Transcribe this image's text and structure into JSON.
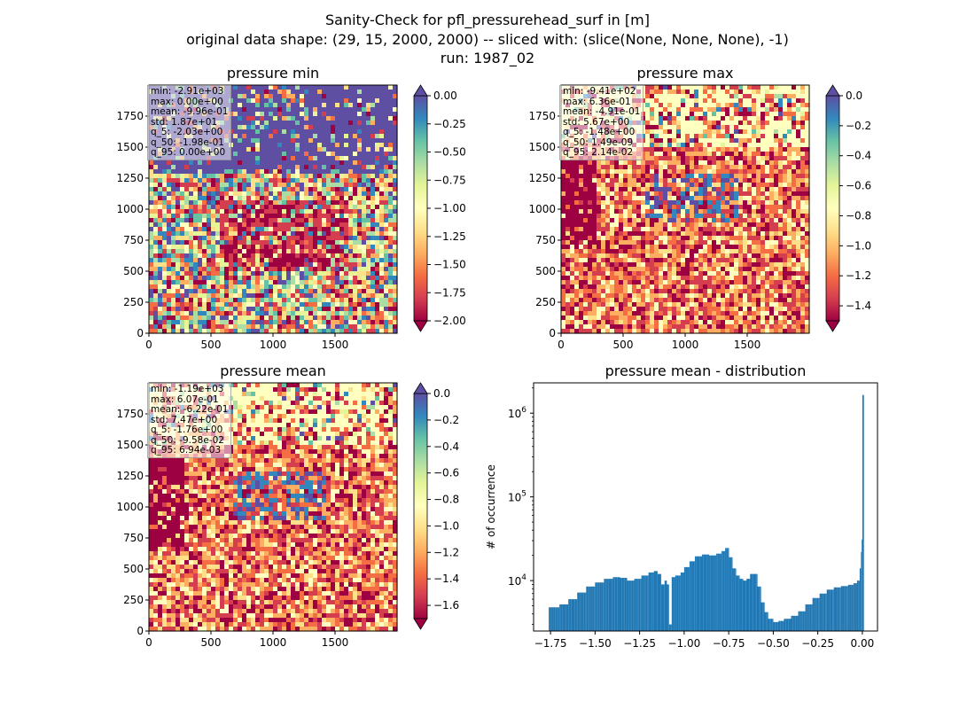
{
  "figure": {
    "title_line1": "Sanity-Check for pfl_pressurehead_surf in [m]",
    "title_line2": "original data shape: (29, 15, 2000, 2000) -- sliced with: (slice(None, None, None), -1)",
    "title_line3": "run: 1987_02"
  },
  "colors": {
    "spectral": [
      "#9e0142",
      "#d53e4f",
      "#f46d43",
      "#fdae61",
      "#fee08b",
      "#ffffbf",
      "#e6f598",
      "#abdda4",
      "#66c2a5",
      "#3288bd",
      "#5e4fa2"
    ],
    "histogram_bar": "#1f77b4"
  },
  "chart_data": [
    {
      "type": "heatmap",
      "title": "pressure min",
      "x_ticks": [
        "0",
        "500",
        "1000",
        "1500"
      ],
      "y_ticks": [
        "0",
        "250",
        "500",
        "750",
        "1000",
        "1250",
        "1500",
        "1750"
      ],
      "xlim": [
        0,
        2000
      ],
      "ylim": [
        0,
        2000
      ],
      "colorbar": {
        "min": -2.0,
        "max": 0.0,
        "extend": "both",
        "ticks": [
          "0.00",
          "−0.25",
          "−0.50",
          "−0.75",
          "−1.00",
          "−1.25",
          "−1.50",
          "−1.75",
          "−2.00"
        ]
      },
      "stats": [
        "min: -2.91e+03",
        "max: 0.00e+00",
        "mean: -9.96e-01",
        "std: 1.87e+01",
        "q_5: -2.03e+00",
        "q_50: -1.98e-01",
        "q_95: 0.00e+00"
      ]
    },
    {
      "type": "heatmap",
      "title": "pressure max",
      "x_ticks": [
        "0",
        "500",
        "1000",
        "1500"
      ],
      "y_ticks": [
        "0",
        "250",
        "500",
        "750",
        "1000",
        "1250",
        "1500",
        "1750"
      ],
      "xlim": [
        0,
        2000
      ],
      "ylim": [
        0,
        2000
      ],
      "colorbar": {
        "min": -1.5,
        "max": 0.0,
        "extend": "both",
        "ticks": [
          "0.0",
          "−0.2",
          "−0.4",
          "−0.6",
          "−0.8",
          "−1.0",
          "−1.2",
          "−1.4"
        ]
      },
      "stats": [
        "min: -9.41e+02",
        "max: 6.36e-01",
        "mean: -4.91e-01",
        "std: 5.67e+00",
        "q_5: -1.48e+00",
        "q_50: 1.49e-09",
        "q_95: 2.14e-02"
      ]
    },
    {
      "type": "heatmap",
      "title": "pressure mean",
      "x_ticks": [
        "0",
        "500",
        "1000",
        "1500"
      ],
      "y_ticks": [
        "0",
        "250",
        "500",
        "750",
        "1000",
        "1250",
        "1500",
        "1750"
      ],
      "xlim": [
        0,
        2000
      ],
      "ylim": [
        0,
        2000
      ],
      "colorbar": {
        "min": -1.7,
        "max": 0.0,
        "extend": "both",
        "ticks": [
          "0.0",
          "−0.2",
          "−0.4",
          "−0.6",
          "−0.8",
          "−1.0",
          "−1.2",
          "−1.4",
          "−1.6"
        ]
      },
      "stats": [
        "min: -1.19e+03",
        "max: 6.07e-01",
        "mean: -6.22e-01",
        "std: 7.47e+00",
        "q_5: -1.76e+00",
        "q_50: -9.58e-02",
        "q_95: 6.94e-03"
      ]
    },
    {
      "type": "bar",
      "title": "pressure mean - distribution",
      "ylabel": "# of occurrence",
      "y_scale": "log",
      "xlim": [
        -1.845,
        0.085
      ],
      "ylim": [
        2500,
        2300000
      ],
      "x_ticks": [
        "−1.75",
        "−1.50",
        "−1.25",
        "−1.00",
        "−0.75",
        "−0.50",
        "−0.25",
        "0.00"
      ],
      "y_ticks": [
        "10^4",
        "10^5",
        "10^6"
      ],
      "bin_width": 0.0088,
      "bins": [
        [
          -1.76,
          4800
        ],
        [
          -1.7,
          5200
        ],
        [
          -1.65,
          6000
        ],
        [
          -1.6,
          7200
        ],
        [
          -1.55,
          8500
        ],
        [
          -1.5,
          9500
        ],
        [
          -1.45,
          10500
        ],
        [
          -1.4,
          11000
        ],
        [
          -1.36,
          10800
        ],
        [
          -1.32,
          10000
        ],
        [
          -1.28,
          10500
        ],
        [
          -1.24,
          11500
        ],
        [
          -1.2,
          12500
        ],
        [
          -1.17,
          13000
        ],
        [
          -1.15,
          12000
        ],
        [
          -1.13,
          9000
        ],
        [
          -1.11,
          10000
        ],
        [
          -1.1,
          9000
        ],
        [
          -1.085,
          3000
        ],
        [
          -1.07,
          11000
        ],
        [
          -1.05,
          11500
        ],
        [
          -1.02,
          12500
        ],
        [
          -1.0,
          14500
        ],
        [
          -0.97,
          17000
        ],
        [
          -0.94,
          19500
        ],
        [
          -0.9,
          20500
        ],
        [
          -0.86,
          20000
        ],
        [
          -0.82,
          21000
        ],
        [
          -0.79,
          22500
        ],
        [
          -0.77,
          24500
        ],
        [
          -0.75,
          19000
        ],
        [
          -0.73,
          14000
        ],
        [
          -0.71,
          11500
        ],
        [
          -0.69,
          10500
        ],
        [
          -0.67,
          10000
        ],
        [
          -0.65,
          10500
        ],
        [
          -0.63,
          12000
        ],
        [
          -0.61,
          12000
        ],
        [
          -0.59,
          8500
        ],
        [
          -0.57,
          5500
        ],
        [
          -0.55,
          4200
        ],
        [
          -0.53,
          3500
        ],
        [
          -0.5,
          3200
        ],
        [
          -0.47,
          3300
        ],
        [
          -0.44,
          3500
        ],
        [
          -0.4,
          3800
        ],
        [
          -0.36,
          4300
        ],
        [
          -0.32,
          5200
        ],
        [
          -0.28,
          6200
        ],
        [
          -0.24,
          7000
        ],
        [
          -0.2,
          7800
        ],
        [
          -0.16,
          8300
        ],
        [
          -0.12,
          8600
        ],
        [
          -0.08,
          8900
        ],
        [
          -0.05,
          9300
        ],
        [
          -0.03,
          10000
        ],
        [
          -0.015,
          14000
        ],
        [
          -0.008,
          22000
        ],
        [
          -0.004,
          31000
        ],
        [
          0.0,
          1650000
        ]
      ]
    }
  ]
}
